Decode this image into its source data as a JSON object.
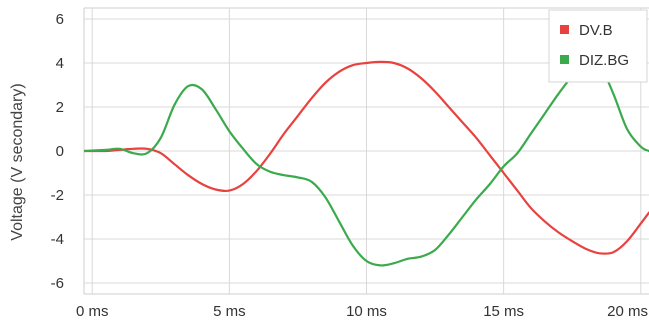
{
  "chart_data": {
    "type": "line",
    "title": "",
    "xlabel": "",
    "ylabel": "Voltage (V secondary)",
    "x_unit": "ms",
    "xlim": [
      -0.3,
      20.3
    ],
    "ylim": [
      -6.5,
      6.5
    ],
    "x_ticks": [
      0,
      5,
      10,
      15,
      20
    ],
    "x_tick_labels": [
      "0 ms",
      "5 ms",
      "10 ms",
      "15 ms",
      "20 ms"
    ],
    "y_ticks": [
      6,
      4,
      2,
      0,
      -2,
      -4,
      -6
    ],
    "y_tick_labels": [
      "6",
      "4",
      "2",
      "0",
      "-2",
      "-4",
      "-6"
    ],
    "grid": true,
    "legend_position": "top-right",
    "series": [
      {
        "name": "DV.B",
        "color": "#e8423f",
        "x": [
          -0.3,
          0.5,
          1.0,
          1.5,
          2.0,
          2.5,
          3.0,
          3.5,
          4.0,
          4.5,
          5.0,
          5.5,
          6.0,
          6.5,
          7.0,
          7.5,
          8.0,
          8.5,
          9.0,
          9.5,
          10.0,
          10.5,
          11.0,
          11.5,
          12.0,
          12.5,
          13.0,
          13.5,
          14.0,
          14.5,
          15.0,
          15.5,
          16.0,
          16.5,
          17.0,
          17.5,
          18.0,
          18.5,
          19.0,
          19.5,
          20.0,
          20.3
        ],
        "values": [
          0.0,
          0.0,
          0.05,
          0.1,
          0.1,
          -0.1,
          -0.6,
          -1.1,
          -1.5,
          -1.75,
          -1.8,
          -1.5,
          -0.9,
          -0.1,
          0.8,
          1.6,
          2.4,
          3.1,
          3.6,
          3.9,
          4.0,
          4.05,
          4.0,
          3.75,
          3.3,
          2.7,
          2.0,
          1.3,
          0.6,
          -0.2,
          -1.0,
          -1.8,
          -2.6,
          -3.2,
          -3.7,
          -4.1,
          -4.45,
          -4.65,
          -4.6,
          -4.1,
          -3.3,
          -2.8
        ]
      },
      {
        "name": "DIZ.BG",
        "color": "#3aaa4c",
        "x": [
          -0.3,
          0.5,
          1.0,
          1.5,
          2.0,
          2.5,
          3.0,
          3.5,
          4.0,
          4.5,
          5.0,
          5.5,
          6.0,
          6.5,
          7.0,
          7.5,
          8.0,
          8.5,
          9.0,
          9.5,
          10.0,
          10.5,
          11.0,
          11.5,
          12.0,
          12.5,
          13.0,
          13.5,
          14.0,
          14.5,
          15.0,
          15.5,
          16.0,
          16.5,
          17.0,
          17.5,
          18.0,
          18.5,
          19.0,
          19.5,
          20.0,
          20.3
        ],
        "values": [
          0.0,
          0.05,
          0.1,
          -0.1,
          -0.1,
          0.6,
          2.1,
          2.95,
          2.8,
          1.9,
          0.9,
          0.1,
          -0.6,
          -0.95,
          -1.1,
          -1.2,
          -1.4,
          -2.1,
          -3.2,
          -4.3,
          -5.0,
          -5.2,
          -5.1,
          -4.9,
          -4.8,
          -4.5,
          -3.8,
          -3.0,
          -2.2,
          -1.5,
          -0.7,
          -0.1,
          0.8,
          1.7,
          2.6,
          3.4,
          3.95,
          3.9,
          2.6,
          1.0,
          0.2,
          0.0
        ]
      }
    ]
  }
}
